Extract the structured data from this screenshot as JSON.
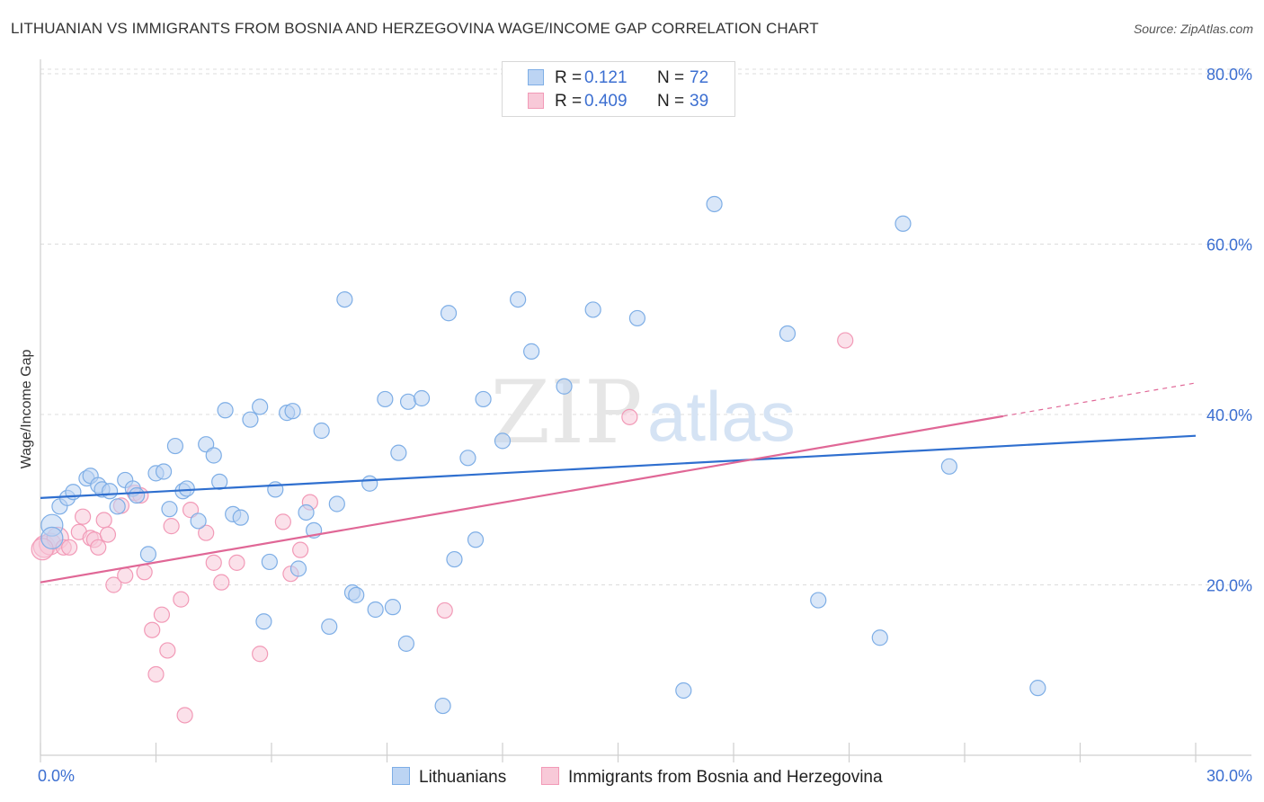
{
  "title": "LITHUANIAN VS IMMIGRANTS FROM BOSNIA AND HERZEGOVINA WAGE/INCOME GAP CORRELATION CHART",
  "source": "Source: ZipAtlas.com",
  "watermark": {
    "zip": "ZIP",
    "atlas": "atlas"
  },
  "legend": {
    "r_label": "R =",
    "n_label": "N =",
    "series": [
      {
        "r": "0.121",
        "n": "72"
      },
      {
        "r": "0.409",
        "n": "39"
      }
    ]
  },
  "chart_data": {
    "type": "scatter",
    "title": "LITHUANIAN VS IMMIGRANTS FROM BOSNIA AND HERZEGOVINA WAGE/INCOME GAP CORRELATION CHART",
    "xlabel": "",
    "ylabel": "Wage/Income Gap",
    "xlim": [
      0,
      30
    ],
    "ylim": [
      0,
      80
    ],
    "x_tick_labels": [
      "0.0%",
      "30.0%"
    ],
    "y_ticks": [
      20,
      40,
      60,
      80
    ],
    "y_tick_labels": [
      "20.0%",
      "40.0%",
      "60.0%",
      "80.0%"
    ],
    "grid": true,
    "series": [
      {
        "name": "Lithuanians",
        "color": "#7eaee6",
        "fill": "#bcd4f3",
        "line_color": "#2f6fcf",
        "trend": {
          "x": [
            0,
            30
          ],
          "y": [
            30.2,
            37.5
          ]
        },
        "points": [
          [
            0.3,
            27
          ],
          [
            0.3,
            25.5
          ],
          [
            0.5,
            29.2
          ],
          [
            0.7,
            30.2
          ],
          [
            0.85,
            30.9
          ],
          [
            1.2,
            32.5
          ],
          [
            1.3,
            32.8
          ],
          [
            1.5,
            31.7
          ],
          [
            1.6,
            31.2
          ],
          [
            1.8,
            31
          ],
          [
            2.0,
            29.2
          ],
          [
            2.2,
            32.3
          ],
          [
            2.4,
            31.3
          ],
          [
            2.5,
            30.5
          ],
          [
            2.8,
            23.6
          ],
          [
            3.0,
            33.1
          ],
          [
            3.2,
            33.3
          ],
          [
            3.35,
            28.9
          ],
          [
            3.5,
            36.3
          ],
          [
            3.7,
            31
          ],
          [
            3.8,
            31.3
          ],
          [
            4.1,
            27.5
          ],
          [
            4.3,
            36.5
          ],
          [
            4.5,
            35.2
          ],
          [
            4.65,
            32.1
          ],
          [
            4.8,
            40.5
          ],
          [
            5.0,
            28.3
          ],
          [
            5.2,
            27.9
          ],
          [
            5.45,
            39.4
          ],
          [
            5.7,
            40.9
          ],
          [
            5.8,
            15.7
          ],
          [
            5.95,
            22.7
          ],
          [
            6.1,
            31.2
          ],
          [
            6.4,
            40.2
          ],
          [
            6.55,
            40.4
          ],
          [
            6.7,
            21.9
          ],
          [
            6.9,
            28.5
          ],
          [
            7.1,
            26.4
          ],
          [
            7.3,
            38.1
          ],
          [
            7.5,
            15.1
          ],
          [
            7.7,
            29.5
          ],
          [
            7.9,
            53.5
          ],
          [
            8.1,
            19.1
          ],
          [
            8.2,
            18.8
          ],
          [
            8.55,
            31.9
          ],
          [
            8.7,
            17.1
          ],
          [
            8.95,
            41.8
          ],
          [
            9.15,
            17.4
          ],
          [
            9.3,
            35.5
          ],
          [
            9.5,
            13.1
          ],
          [
            9.55,
            41.5
          ],
          [
            9.9,
            41.9
          ],
          [
            10.45,
            5.8
          ],
          [
            10.6,
            51.9
          ],
          [
            10.75,
            23
          ],
          [
            11.1,
            34.9
          ],
          [
            11.3,
            25.3
          ],
          [
            11.5,
            41.8
          ],
          [
            12,
            36.9
          ],
          [
            12.4,
            53.5
          ],
          [
            12.75,
            47.4
          ],
          [
            13.6,
            43.3
          ],
          [
            14.35,
            52.3
          ],
          [
            15.5,
            51.3
          ],
          [
            16.7,
            7.6
          ],
          [
            17.5,
            64.7
          ],
          [
            19.4,
            49.5
          ],
          [
            20.2,
            18.2
          ],
          [
            21.8,
            13.8
          ],
          [
            22.4,
            62.4
          ],
          [
            23.6,
            33.9
          ],
          [
            25.9,
            7.9
          ]
        ]
      },
      {
        "name": "Immigrants from Bosnia and Herzegovina",
        "color": "#f29ab7",
        "fill": "#f8c9d8",
        "line_color": "#e06796",
        "trend": {
          "x": [
            0,
            25
          ],
          "y": [
            20.3,
            39.8
          ]
        },
        "points": [
          [
            0.1,
            24.5
          ],
          [
            0.25,
            24.8
          ],
          [
            0.45,
            25.5
          ],
          [
            0.6,
            24.4
          ],
          [
            0.75,
            24.4
          ],
          [
            1.0,
            26.2
          ],
          [
            1.1,
            28
          ],
          [
            1.3,
            25.5
          ],
          [
            1.4,
            25.3
          ],
          [
            1.5,
            24.4
          ],
          [
            1.65,
            27.6
          ],
          [
            1.75,
            25.9
          ],
          [
            1.9,
            20
          ],
          [
            2.1,
            29.3
          ],
          [
            2.2,
            21.1
          ],
          [
            2.45,
            30.8
          ],
          [
            2.6,
            30.5
          ],
          [
            2.7,
            21.5
          ],
          [
            2.9,
            14.7
          ],
          [
            3.0,
            9.5
          ],
          [
            3.15,
            16.5
          ],
          [
            3.3,
            12.3
          ],
          [
            3.4,
            26.9
          ],
          [
            3.65,
            18.3
          ],
          [
            3.75,
            4.7
          ],
          [
            3.9,
            28.8
          ],
          [
            4.3,
            26.1
          ],
          [
            4.5,
            22.6
          ],
          [
            4.7,
            20.3
          ],
          [
            5.1,
            22.6
          ],
          [
            5.7,
            11.9
          ],
          [
            6.3,
            27.4
          ],
          [
            6.5,
            21.3
          ],
          [
            6.75,
            24.1
          ],
          [
            7.0,
            29.7
          ],
          [
            10.5,
            17
          ],
          [
            15.3,
            39.7
          ],
          [
            20.9,
            48.7
          ],
          [
            0.05,
            24.2
          ]
        ]
      }
    ]
  },
  "bottom_legend": [
    "Lithuanians",
    "Immigrants from Bosnia and Herzegovina"
  ]
}
